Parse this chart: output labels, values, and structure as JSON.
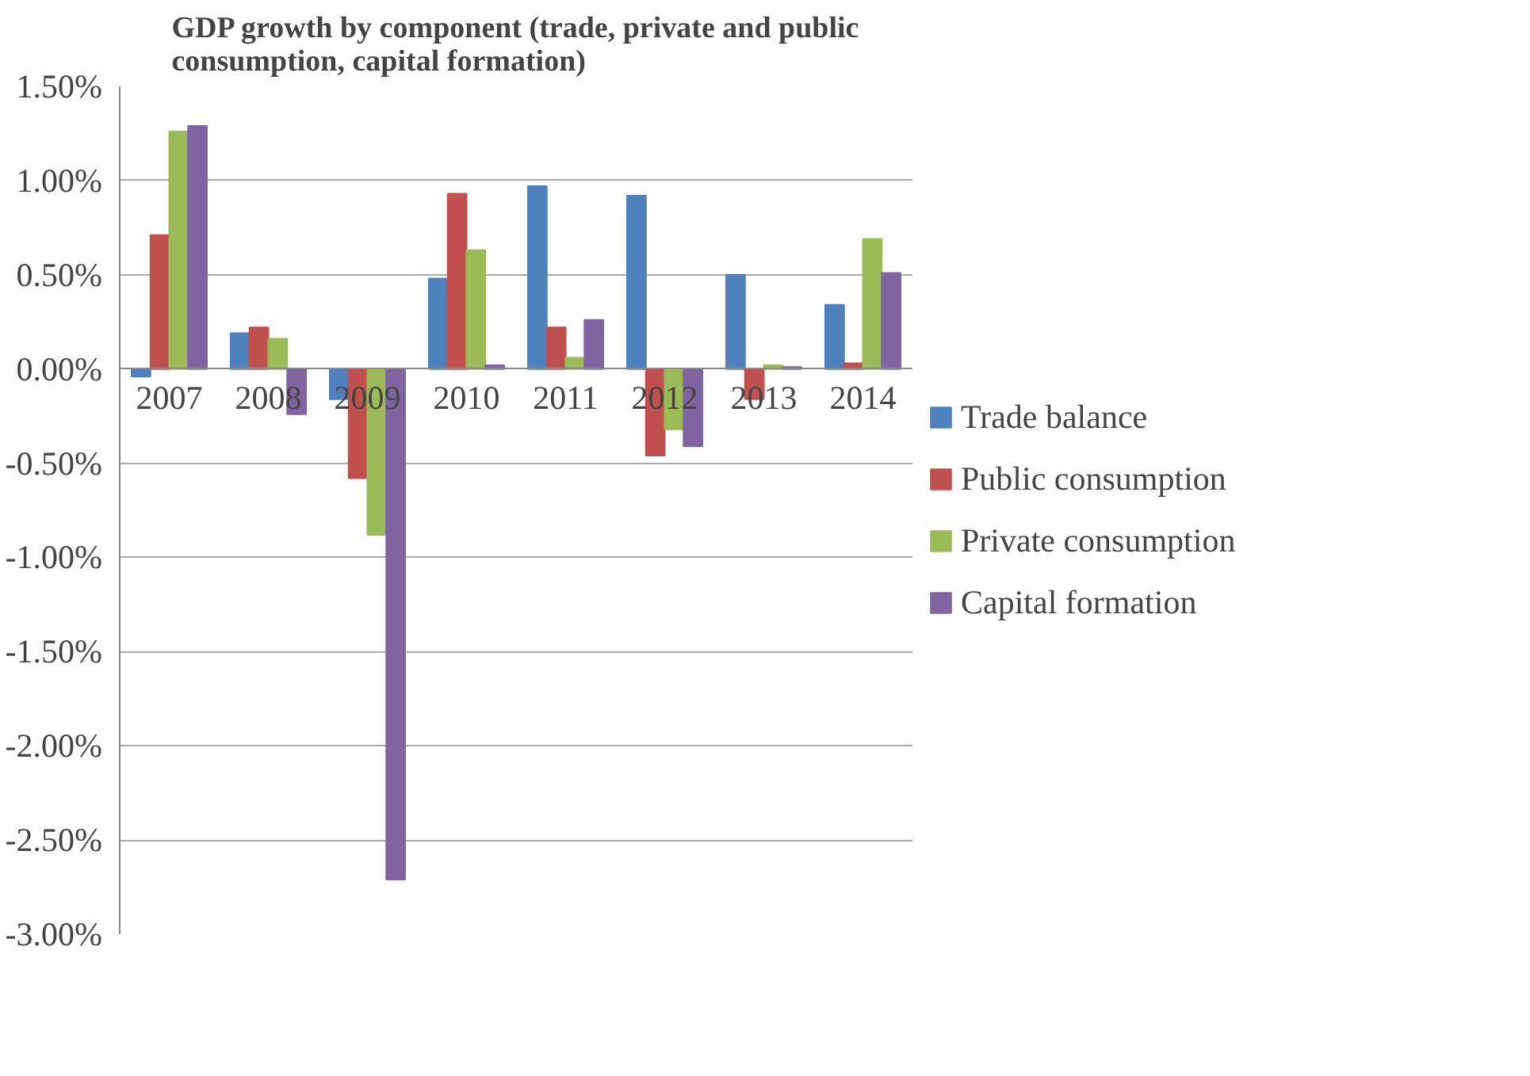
{
  "chart_data": {
    "type": "bar",
    "title": "GDP growth by component (trade, private and public consumption, capital formation)",
    "categories": [
      "2007",
      "2008",
      "2009",
      "2010",
      "2011",
      "2012",
      "2013",
      "2014"
    ],
    "series": [
      {
        "name": "Trade balance",
        "color": "#4f81bd",
        "values": [
          -0.04,
          0.19,
          -0.16,
          0.48,
          0.97,
          0.92,
          0.5,
          0.34
        ]
      },
      {
        "name": "Public consumption",
        "color": "#c0504d",
        "values": [
          0.71,
          0.22,
          -0.58,
          0.93,
          0.22,
          -0.46,
          -0.16,
          0.03
        ]
      },
      {
        "name": "Private consumption",
        "color": "#9bbb59",
        "values": [
          1.26,
          0.16,
          -0.88,
          0.63,
          0.06,
          -0.32,
          0.02,
          0.69
        ]
      },
      {
        "name": "Capital formation",
        "color": "#8064a2",
        "values": [
          1.29,
          -0.24,
          -2.71,
          0.02,
          0.26,
          -0.41,
          0.01,
          0.51
        ]
      }
    ],
    "ylim": [
      -3.0,
      1.5
    ],
    "yticks": [
      {
        "value": -3.0,
        "label": "-3.00%"
      },
      {
        "value": -2.5,
        "label": "-2.50%"
      },
      {
        "value": -2.0,
        "label": "-2.00%"
      },
      {
        "value": -1.5,
        "label": "-1.50%"
      },
      {
        "value": -1.0,
        "label": "-1.00%"
      },
      {
        "value": -0.5,
        "label": "-0.50%"
      },
      {
        "value": 0.0,
        "label": "0.00%"
      },
      {
        "value": 0.5,
        "label": "0.50%"
      },
      {
        "value": 1.0,
        "label": "1.00%"
      },
      {
        "value": 1.5,
        "label": "1.50%"
      }
    ],
    "grid": "y",
    "legend": "right"
  }
}
